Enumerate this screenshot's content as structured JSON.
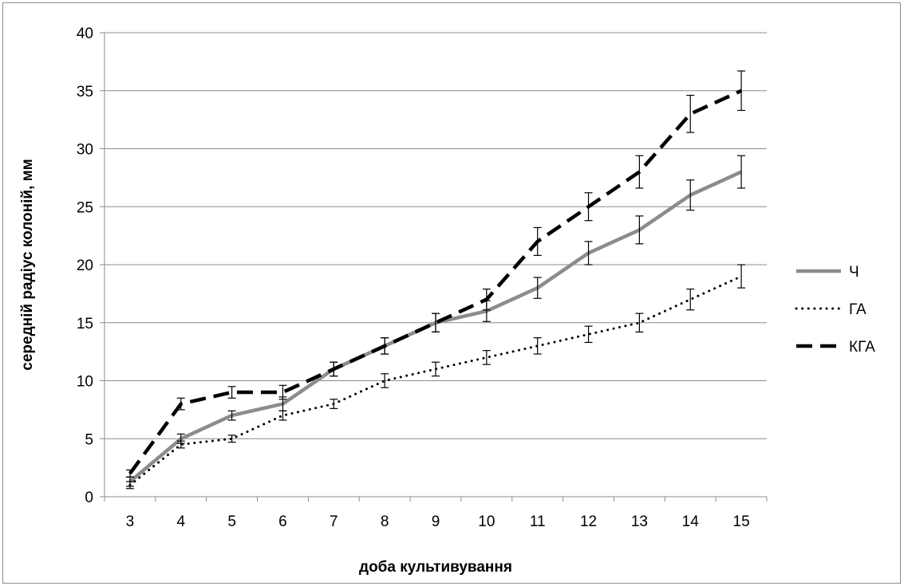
{
  "chart_data": {
    "type": "line",
    "title": "",
    "xlabel": "доба культивування",
    "ylabel": "середній радіус колоній, мм",
    "categories": [
      "3",
      "4",
      "5",
      "6",
      "7",
      "8",
      "9",
      "10",
      "11",
      "12",
      "13",
      "14",
      "15"
    ],
    "ylim": [
      0,
      40
    ],
    "yticks": [
      0,
      5,
      10,
      15,
      20,
      25,
      30,
      35,
      40
    ],
    "grid": true,
    "legend_position": "right",
    "series": [
      {
        "name": "Ч",
        "color": "#8c8c8c",
        "line_style": "solid",
        "values": [
          1.3,
          5,
          7,
          8,
          11,
          13,
          15,
          16,
          18,
          21,
          23,
          26,
          28
        ],
        "errors": [
          0.4,
          0.4,
          0.4,
          0.6,
          0.6,
          0.7,
          0.8,
          0.9,
          0.9,
          1.0,
          1.2,
          1.3,
          1.4
        ]
      },
      {
        "name": "ГА",
        "color": "#000000",
        "line_style": "dotted",
        "values": [
          1.0,
          4.5,
          5,
          7,
          8,
          10,
          11,
          12,
          13,
          14,
          15,
          17,
          19
        ],
        "errors": [
          0.3,
          0.3,
          0.3,
          0.4,
          0.4,
          0.6,
          0.6,
          0.6,
          0.7,
          0.7,
          0.8,
          0.9,
          1.0
        ]
      },
      {
        "name": "КГА",
        "color": "#000000",
        "line_style": "dashed",
        "values": [
          2,
          8,
          9,
          9,
          11,
          13,
          15,
          17,
          22,
          25,
          28,
          33,
          35
        ],
        "errors": [
          0.3,
          0.5,
          0.5,
          0.6,
          0.6,
          0.7,
          0.8,
          0.9,
          1.2,
          1.2,
          1.4,
          1.6,
          1.7
        ]
      }
    ]
  }
}
